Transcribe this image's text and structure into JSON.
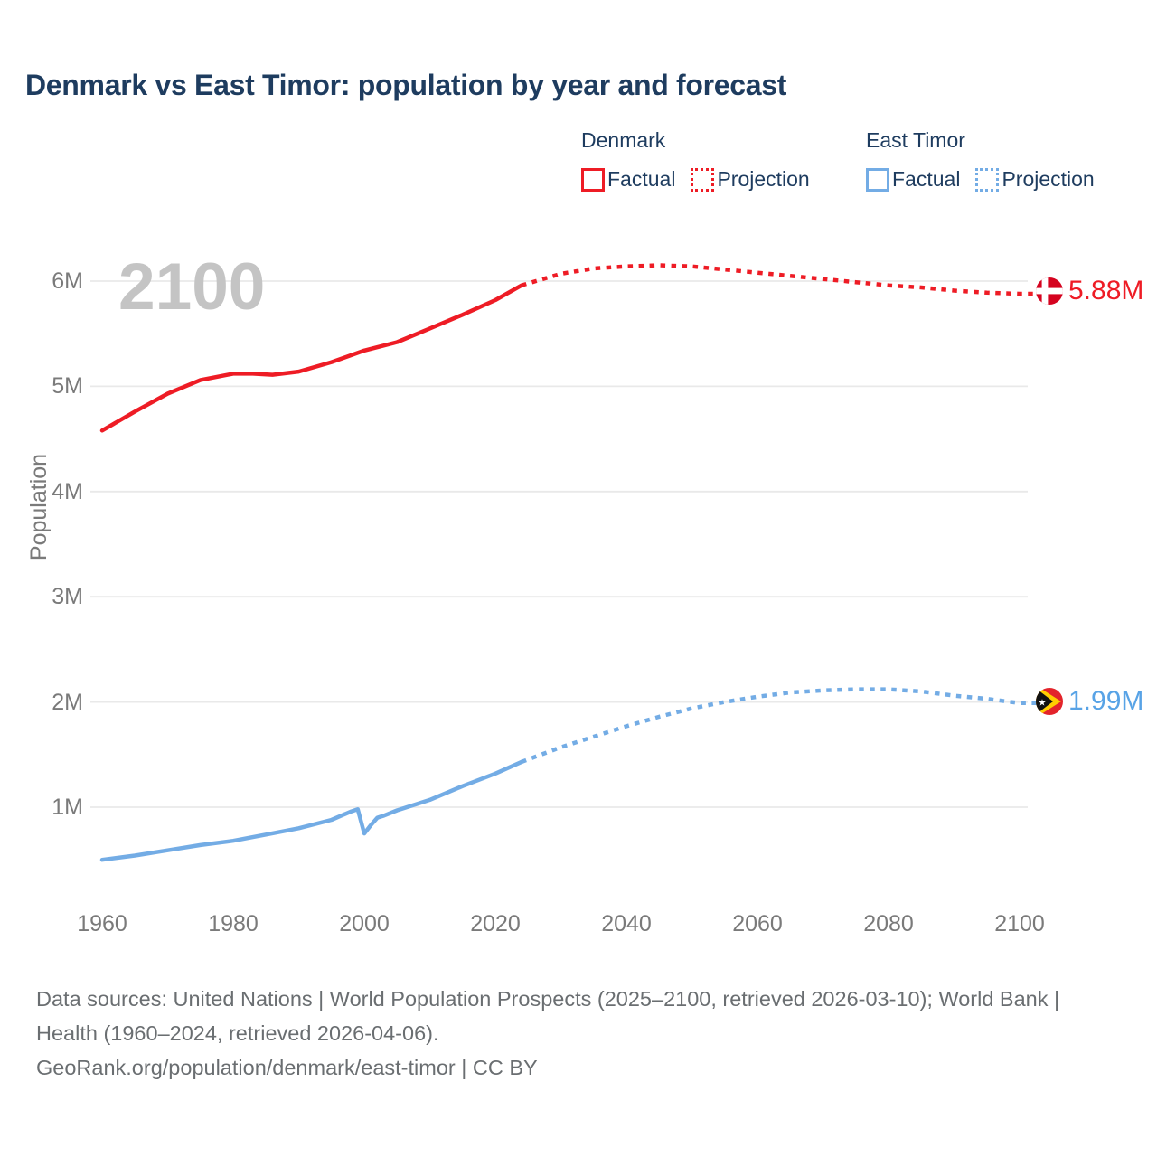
{
  "title": "Denmark vs East Timor: population by year and forecast",
  "legend": {
    "groups": [
      {
        "name": "Denmark",
        "items": [
          {
            "label": "Factual",
            "style": "solid",
            "color": "#ee1c25"
          },
          {
            "label": "Projection",
            "style": "dotted",
            "color": "#ee1c25"
          }
        ]
      },
      {
        "name": "East Timor",
        "items": [
          {
            "label": "Factual",
            "style": "solid",
            "color": "#73ace5"
          },
          {
            "label": "Projection",
            "style": "dotted",
            "color": "#73ace5"
          }
        ]
      }
    ]
  },
  "chart": {
    "watermark": "2100",
    "y_axis_label": "Population",
    "y_ticks": [
      "6M",
      "5M",
      "4M",
      "3M",
      "2M",
      "1M"
    ],
    "x_ticks": [
      "1960",
      "1980",
      "2000",
      "2020",
      "2040",
      "2060",
      "2080",
      "2100"
    ]
  },
  "end_labels": {
    "denmark": "5.88M",
    "east_timor": "1.99M"
  },
  "footer": {
    "sources": "Data sources: United Nations | World Population Prospects (2025–2100, retrieved 2026-03-10); World Bank | Health (1960–2024, retrieved 2026-04-06).",
    "attribution": "GeoRank.org/population/denmark/east-timor | CC BY"
  },
  "chart_data": {
    "type": "line",
    "title": "Denmark vs East Timor: population by year and forecast",
    "xlabel": "",
    "ylabel": "Population",
    "x_range": [
      1960,
      2100
    ],
    "y_tick_values_millions": [
      1,
      2,
      3,
      4,
      5,
      6
    ],
    "grid": true,
    "legend_position": "top-right",
    "units": "millions of people",
    "series": [
      {
        "name": "Denmark Factual",
        "style": "solid",
        "color": "#ee1c25",
        "points": [
          [
            1960,
            4.58
          ],
          [
            1965,
            4.76
          ],
          [
            1970,
            4.93
          ],
          [
            1975,
            5.06
          ],
          [
            1980,
            5.12
          ],
          [
            1983,
            5.12
          ],
          [
            1986,
            5.11
          ],
          [
            1990,
            5.14
          ],
          [
            1995,
            5.23
          ],
          [
            2000,
            5.34
          ],
          [
            2005,
            5.42
          ],
          [
            2010,
            5.55
          ],
          [
            2015,
            5.68
          ],
          [
            2020,
            5.82
          ],
          [
            2024,
            5.96
          ]
        ]
      },
      {
        "name": "Denmark Projection",
        "style": "dotted",
        "color": "#ee1c25",
        "points": [
          [
            2024,
            5.96
          ],
          [
            2030,
            6.07
          ],
          [
            2035,
            6.12
          ],
          [
            2040,
            6.14
          ],
          [
            2045,
            6.15
          ],
          [
            2050,
            6.14
          ],
          [
            2055,
            6.11
          ],
          [
            2060,
            6.08
          ],
          [
            2065,
            6.05
          ],
          [
            2070,
            6.02
          ],
          [
            2075,
            5.99
          ],
          [
            2080,
            5.96
          ],
          [
            2085,
            5.94
          ],
          [
            2090,
            5.91
          ],
          [
            2095,
            5.89
          ],
          [
            2100,
            5.88
          ]
        ]
      },
      {
        "name": "East Timor Factual",
        "style": "solid",
        "color": "#73ace5",
        "points": [
          [
            1960,
            0.5
          ],
          [
            1965,
            0.54
          ],
          [
            1970,
            0.59
          ],
          [
            1975,
            0.64
          ],
          [
            1980,
            0.68
          ],
          [
            1985,
            0.74
          ],
          [
            1990,
            0.8
          ],
          [
            1995,
            0.88
          ],
          [
            1998,
            0.96
          ],
          [
            1999,
            0.98
          ],
          [
            2000,
            0.75
          ],
          [
            2001,
            0.83
          ],
          [
            2002,
            0.9
          ],
          [
            2003,
            0.92
          ],
          [
            2005,
            0.97
          ],
          [
            2010,
            1.07
          ],
          [
            2015,
            1.2
          ],
          [
            2020,
            1.32
          ],
          [
            2024,
            1.43
          ]
        ]
      },
      {
        "name": "East Timor Projection",
        "style": "dotted",
        "color": "#73ace5",
        "points": [
          [
            2024,
            1.43
          ],
          [
            2030,
            1.57
          ],
          [
            2035,
            1.67
          ],
          [
            2040,
            1.77
          ],
          [
            2045,
            1.86
          ],
          [
            2050,
            1.94
          ],
          [
            2055,
            2.0
          ],
          [
            2060,
            2.05
          ],
          [
            2065,
            2.09
          ],
          [
            2070,
            2.11
          ],
          [
            2075,
            2.12
          ],
          [
            2080,
            2.12
          ],
          [
            2085,
            2.1
          ],
          [
            2090,
            2.06
          ],
          [
            2095,
            2.03
          ],
          [
            2100,
            1.99
          ]
        ]
      }
    ],
    "end_markers": [
      {
        "series": "Denmark",
        "value_label": "5.88M",
        "flag": "denmark"
      },
      {
        "series": "East Timor",
        "value_label": "1.99M",
        "flag": "east-timor"
      }
    ]
  }
}
